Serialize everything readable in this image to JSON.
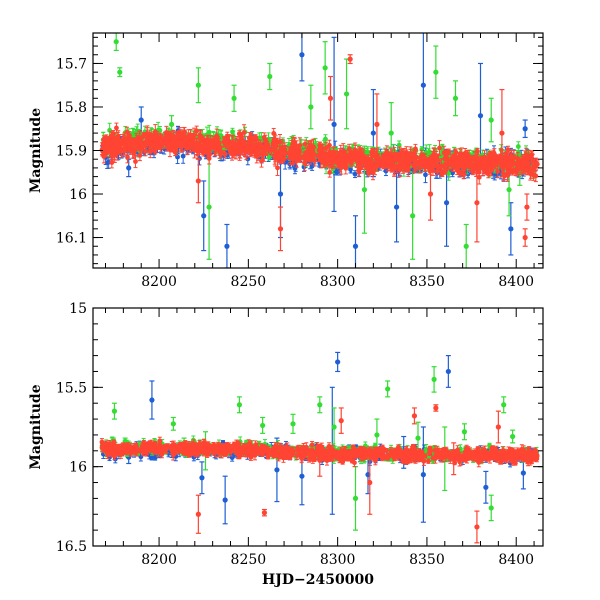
{
  "chart_data": [
    {
      "type": "scatter",
      "ylabel": "Magnitude",
      "xlabel": "",
      "xlim": [
        8163,
        8415
      ],
      "ylim": [
        16.17,
        15.63
      ],
      "y_inverted": true,
      "xticks": [
        8200,
        8250,
        8300,
        8350,
        8400
      ],
      "xtick_labels": [
        "8200",
        "8250",
        "8300",
        "8350",
        "8400"
      ],
      "yticks": [
        15.7,
        15.8,
        15.9,
        16.0,
        16.1
      ],
      "ytick_labels": [
        "15.7",
        "15.8",
        "15.9",
        "16",
        "16.1"
      ],
      "series": [
        {
          "color": "#1f5fd6",
          "trend": [
            [
              8170,
              15.905
            ],
            [
              8200,
              15.88
            ],
            [
              8250,
              15.895
            ],
            [
              8300,
              15.925
            ],
            [
              8350,
              15.93
            ],
            [
              8410,
              15.935
            ]
          ],
          "outliers": [
            {
              "x": 8183,
              "y": 15.94,
              "err": 0.02
            },
            {
              "x": 8190,
              "y": 15.83,
              "err": 0.03
            },
            {
              "x": 8225,
              "y": 16.05,
              "err": 0.08
            },
            {
              "x": 8238,
              "y": 16.12,
              "err": 0.05
            },
            {
              "x": 8268,
              "y": 16.0,
              "err": 0.1
            },
            {
              "x": 8280,
              "y": 15.68,
              "err": 0.06
            },
            {
              "x": 8298,
              "y": 15.84,
              "err": 0.2
            },
            {
              "x": 8310,
              "y": 16.12,
              "err": 0.07
            },
            {
              "x": 8320,
              "y": 15.86,
              "err": 0.1
            },
            {
              "x": 8333,
              "y": 16.03,
              "err": 0.08
            },
            {
              "x": 8348,
              "y": 15.75,
              "err": 0.15
            },
            {
              "x": 8361,
              "y": 16.02,
              "err": 0.1
            },
            {
              "x": 8380,
              "y": 15.82,
              "err": 0.12
            },
            {
              "x": 8397,
              "y": 16.08,
              "err": 0.06
            },
            {
              "x": 8405,
              "y": 15.85,
              "err": 0.02
            }
          ]
        },
        {
          "color": "#33dd33",
          "trend": [
            [
              8170,
              15.88
            ],
            [
              8200,
              15.87
            ],
            [
              8250,
              15.885
            ],
            [
              8300,
              15.91
            ],
            [
              8350,
              15.92
            ],
            [
              8410,
              15.925
            ]
          ],
          "outliers": [
            {
              "x": 8176,
              "y": 15.65,
              "err": 0.02
            },
            {
              "x": 8178,
              "y": 15.72,
              "err": 0.01
            },
            {
              "x": 8207,
              "y": 15.84,
              "err": 0.02
            },
            {
              "x": 8222,
              "y": 15.75,
              "err": 0.04
            },
            {
              "x": 8228,
              "y": 16.03,
              "err": 0.12
            },
            {
              "x": 8242,
              "y": 15.78,
              "err": 0.03
            },
            {
              "x": 8262,
              "y": 15.73,
              "err": 0.03
            },
            {
              "x": 8285,
              "y": 15.8,
              "err": 0.05
            },
            {
              "x": 8293,
              "y": 15.71,
              "err": 0.06
            },
            {
              "x": 8305,
              "y": 15.77,
              "err": 0.08
            },
            {
              "x": 8315,
              "y": 15.99,
              "err": 0.1
            },
            {
              "x": 8330,
              "y": 15.86,
              "err": 0.07
            },
            {
              "x": 8342,
              "y": 16.05,
              "err": 0.1
            },
            {
              "x": 8355,
              "y": 15.72,
              "err": 0.06
            },
            {
              "x": 8366,
              "y": 15.78,
              "err": 0.04
            },
            {
              "x": 8372,
              "y": 16.12,
              "err": 0.05
            },
            {
              "x": 8386,
              "y": 15.83,
              "err": 0.05
            },
            {
              "x": 8396,
              "y": 15.99,
              "err": 0.06
            },
            {
              "x": 8402,
              "y": 15.95,
              "err": 0.03
            }
          ]
        },
        {
          "color": "#ff4433",
          "trend": [
            [
              8170,
              15.89
            ],
            [
              8200,
              15.88
            ],
            [
              8250,
              15.89
            ],
            [
              8300,
              15.92
            ],
            [
              8350,
              15.925
            ],
            [
              8412,
              15.93
            ]
          ],
          "outliers": [
            {
              "x": 8222,
              "y": 15.97,
              "err": 0.05
            },
            {
              "x": 8268,
              "y": 16.08,
              "err": 0.05
            },
            {
              "x": 8296,
              "y": 15.78,
              "err": 0.05
            },
            {
              "x": 8307,
              "y": 15.69,
              "err": 0.01
            },
            {
              "x": 8322,
              "y": 15.84,
              "err": 0.07
            },
            {
              "x": 8352,
              "y": 16.0,
              "err": 0.06
            },
            {
              "x": 8378,
              "y": 16.02,
              "err": 0.09
            },
            {
              "x": 8392,
              "y": 15.86,
              "err": 0.1
            },
            {
              "x": 8406,
              "y": 16.03,
              "err": 0.03
            },
            {
              "x": 8405,
              "y": 16.1,
              "err": 0.02
            }
          ]
        }
      ]
    },
    {
      "type": "scatter",
      "ylabel": "Magnitude",
      "xlabel": "HJD−2450000",
      "xlim": [
        8163,
        8415
      ],
      "ylim": [
        16.5,
        15.0
      ],
      "y_inverted": true,
      "xticks": [
        8200,
        8250,
        8300,
        8350,
        8400
      ],
      "xtick_labels": [
        "8200",
        "8250",
        "8300",
        "8350",
        "8400"
      ],
      "yticks": [
        15.0,
        15.5,
        16.0,
        16.5
      ],
      "ytick_labels": [
        "15",
        "15.5",
        "16",
        "16.5"
      ],
      "series": [
        {
          "color": "#1f5fd6",
          "trend": [
            [
              8170,
              15.9
            ],
            [
              8200,
              15.89
            ],
            [
              8250,
              15.9
            ],
            [
              8300,
              15.92
            ],
            [
              8350,
              15.93
            ],
            [
              8410,
              15.93
            ]
          ],
          "outliers": [
            {
              "x": 8183,
              "y": 15.94,
              "err": 0.04
            },
            {
              "x": 8196,
              "y": 15.58,
              "err": 0.12
            },
            {
              "x": 8224,
              "y": 16.07,
              "err": 0.1
            },
            {
              "x": 8237,
              "y": 16.21,
              "err": 0.15
            },
            {
              "x": 8266,
              "y": 16.02,
              "err": 0.2
            },
            {
              "x": 8280,
              "y": 16.06,
              "err": 0.18
            },
            {
              "x": 8297,
              "y": 15.9,
              "err": 0.4
            },
            {
              "x": 8300,
              "y": 15.34,
              "err": 0.06
            },
            {
              "x": 8317,
              "y": 16.05,
              "err": 0.12
            },
            {
              "x": 8337,
              "y": 15.91,
              "err": 0.1
            },
            {
              "x": 8348,
              "y": 16.05,
              "err": 0.3
            },
            {
              "x": 8362,
              "y": 15.4,
              "err": 0.1
            },
            {
              "x": 8383,
              "y": 16.13,
              "err": 0.1
            },
            {
              "x": 8404,
              "y": 16.04,
              "err": 0.1
            }
          ]
        },
        {
          "color": "#33dd33",
          "trend": [
            [
              8170,
              15.88
            ],
            [
              8200,
              15.88
            ],
            [
              8250,
              15.89
            ],
            [
              8300,
              15.91
            ],
            [
              8350,
              15.92
            ],
            [
              8410,
              15.925
            ]
          ],
          "outliers": [
            {
              "x": 8175,
              "y": 15.65,
              "err": 0.05
            },
            {
              "x": 8181,
              "y": 15.84,
              "err": 0.02
            },
            {
              "x": 8208,
              "y": 15.73,
              "err": 0.04
            },
            {
              "x": 8214,
              "y": 15.85,
              "err": 0.03
            },
            {
              "x": 8226,
              "y": 15.9,
              "err": 0.12
            },
            {
              "x": 8245,
              "y": 15.61,
              "err": 0.05
            },
            {
              "x": 8258,
              "y": 15.74,
              "err": 0.05
            },
            {
              "x": 8275,
              "y": 15.73,
              "err": 0.06
            },
            {
              "x": 8290,
              "y": 15.61,
              "err": 0.05
            },
            {
              "x": 8298,
              "y": 15.75,
              "err": 0.12
            },
            {
              "x": 8310,
              "y": 16.2,
              "err": 0.2
            },
            {
              "x": 8322,
              "y": 15.8,
              "err": 0.1
            },
            {
              "x": 8328,
              "y": 15.51,
              "err": 0.05
            },
            {
              "x": 8345,
              "y": 15.82,
              "err": 0.1
            },
            {
              "x": 8354,
              "y": 15.45,
              "err": 0.08
            },
            {
              "x": 8360,
              "y": 15.95,
              "err": 0.2
            },
            {
              "x": 8371,
              "y": 15.78,
              "err": 0.05
            },
            {
              "x": 8386,
              "y": 16.26,
              "err": 0.08
            },
            {
              "x": 8393,
              "y": 15.61,
              "err": 0.05
            },
            {
              "x": 8398,
              "y": 15.81,
              "err": 0.04
            }
          ]
        },
        {
          "color": "#ff4433",
          "trend": [
            [
              8170,
              15.89
            ],
            [
              8200,
              15.885
            ],
            [
              8250,
              15.895
            ],
            [
              8300,
              15.92
            ],
            [
              8350,
              15.925
            ],
            [
              8412,
              15.93
            ]
          ],
          "outliers": [
            {
              "x": 8222,
              "y": 16.3,
              "err": 0.12
            },
            {
              "x": 8259,
              "y": 16.29,
              "err": 0.02
            },
            {
              "x": 8290,
              "y": 15.96,
              "err": 0.1
            },
            {
              "x": 8302,
              "y": 15.71,
              "err": 0.08
            },
            {
              "x": 8318,
              "y": 16.1,
              "err": 0.2
            },
            {
              "x": 8343,
              "y": 15.68,
              "err": 0.05
            },
            {
              "x": 8355,
              "y": 15.63,
              "err": 0.02
            },
            {
              "x": 8365,
              "y": 15.95,
              "err": 0.1
            },
            {
              "x": 8378,
              "y": 16.38,
              "err": 0.1
            },
            {
              "x": 8390,
              "y": 15.75,
              "err": 0.1
            }
          ]
        }
      ]
    }
  ]
}
